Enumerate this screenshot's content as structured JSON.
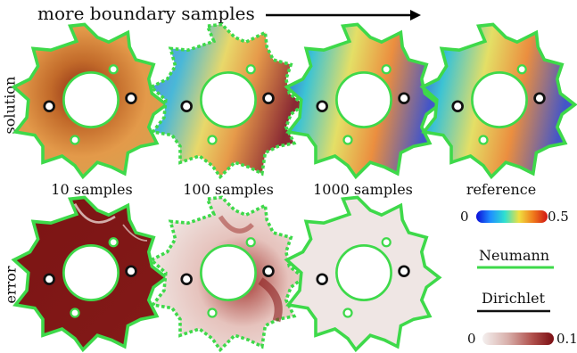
{
  "figure": {
    "title": "more boundary samples",
    "rows": [
      {
        "label": "solution"
      },
      {
        "label": "error"
      }
    ],
    "columns": [
      {
        "label": "10 samples"
      },
      {
        "label": "100 samples"
      },
      {
        "label": "1000 samples"
      },
      {
        "label": "reference"
      }
    ],
    "solution_colorbar": {
      "min": "0",
      "max": "0.5",
      "colors": [
        "#0b0bd8",
        "#1e8fff",
        "#2fe0d0",
        "#f0e040",
        "#f07a1c",
        "#d01414"
      ]
    },
    "error_colorbar": {
      "min": "0",
      "max": "0.1",
      "colors": [
        "#f4f0ef",
        "#d9b1ac",
        "#b0504c",
        "#7a0d12"
      ]
    },
    "boundary_conditions": {
      "neumann_label": "Neumann",
      "neumann_color": "#3ed94a",
      "dirichlet_label": "Dirichlet",
      "dirichlet_color": "#111111"
    }
  }
}
